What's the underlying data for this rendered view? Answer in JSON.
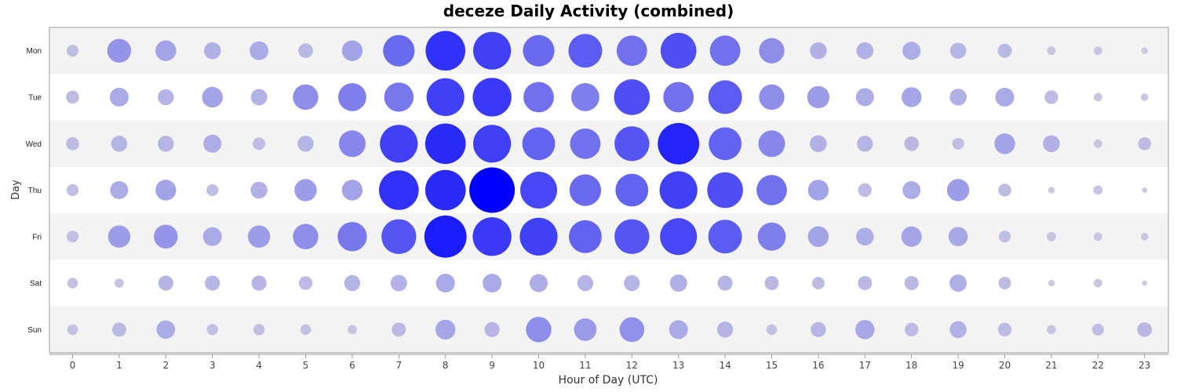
{
  "chart_data": {
    "type": "scatter",
    "title": "deceze Daily Activity (combined)",
    "xlabel": "Hour of Day (UTC)",
    "ylabel": "Day",
    "x": [
      "0",
      "1",
      "2",
      "3",
      "4",
      "5",
      "6",
      "7",
      "8",
      "9",
      "10",
      "11",
      "12",
      "13",
      "14",
      "15",
      "16",
      "17",
      "18",
      "19",
      "20",
      "21",
      "22",
      "23"
    ],
    "y": [
      "Mon",
      "Tue",
      "Wed",
      "Thu",
      "Fri",
      "Sat",
      "Sun"
    ],
    "values": [
      [
        1,
        4,
        3,
        2,
        2.5,
        1.5,
        3,
        7,
        11,
        10,
        7,
        8,
        6.5,
        9,
        6.5,
        4.5,
        2,
        2,
        2.3,
        1.8,
        1.4,
        0.5,
        0.5,
        0.3
      ],
      [
        1.2,
        2.5,
        1.8,
        3,
        1.9,
        4.5,
        5.5,
        6,
        10,
        10.5,
        6.5,
        5.5,
        9,
        6.5,
        8,
        4.5,
        3.5,
        2.3,
        2.8,
        2,
        2.5,
        1.3,
        0.5,
        0.4
      ],
      [
        1.2,
        1.8,
        1.8,
        2.3,
        1.1,
        1.8,
        5,
        10,
        11.5,
        10,
        7.5,
        6.5,
        8.5,
        12,
        7.5,
        5,
        2,
        1.8,
        1.5,
        1,
        3,
        2,
        0.5,
        1.2
      ],
      [
        1,
        2.3,
        3,
        1,
        2,
        3.5,
        3,
        11,
        11.5,
        14.5,
        9.5,
        7,
        7.5,
        10,
        9,
        6.5,
        3,
        1.3,
        2.3,
        3.5,
        1.2,
        0.3,
        0.6,
        0.2
      ],
      [
        1,
        3.5,
        4,
        2.5,
        3.5,
        4.5,
        6,
        8.5,
        12.5,
        10.5,
        10,
        7.5,
        8.5,
        9.5,
        8,
        5.5,
        3,
        2.2,
        2.9,
        2.6,
        1,
        0.6,
        0.5,
        0.4
      ],
      [
        0.8,
        0.6,
        1.6,
        1.6,
        1.6,
        1.3,
        1.8,
        1.9,
        2.5,
        2.5,
        2.3,
        1.8,
        1.8,
        2.1,
        1.6,
        1.4,
        1.1,
        1.4,
        1.4,
        2.1,
        1.1,
        0.3,
        0.5,
        0.2
      ],
      [
        0.8,
        1.4,
        2.4,
        0.9,
        0.9,
        0.8,
        0.6,
        1.4,
        2.8,
        1.6,
        4.5,
        3.6,
        4.3,
        2.5,
        1.8,
        0.8,
        1.6,
        2.6,
        1.3,
        2,
        1.3,
        0.6,
        1,
        1.5
      ]
    ],
    "grid": false,
    "legend": "none"
  }
}
